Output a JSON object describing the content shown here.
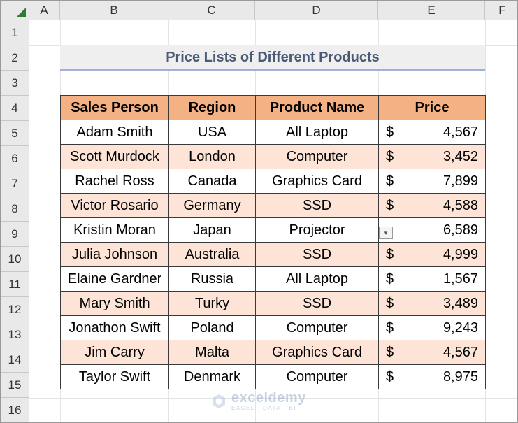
{
  "columns": [
    "A",
    "B",
    "C",
    "D",
    "E",
    "F"
  ],
  "rows": [
    "1",
    "2",
    "3",
    "4",
    "5",
    "6",
    "7",
    "8",
    "9",
    "10",
    "11",
    "12",
    "13",
    "14",
    "15",
    "16"
  ],
  "title": "Price Lists of Different Products",
  "table": {
    "headers": [
      "Sales Person",
      "Region",
      "Product Name",
      "Price"
    ],
    "currency_symbol": "$",
    "rows": [
      {
        "person": "Adam Smith",
        "region": "USA",
        "product": "All Laptop",
        "price": "4,567"
      },
      {
        "person": "Scott Murdock",
        "region": "London",
        "product": "Computer",
        "price": "3,452"
      },
      {
        "person": "Rachel Ross",
        "region": "Canada",
        "product": "Graphics Card",
        "price": "7,899"
      },
      {
        "person": "Victor Rosario",
        "region": "Germany",
        "product": "SSD",
        "price": "4,588"
      },
      {
        "person": "Kristin Moran",
        "region": "Japan",
        "product": "Projector",
        "price": "6,589"
      },
      {
        "person": "Julia Johnson",
        "region": "Australia",
        "product": "SSD",
        "price": "4,999"
      },
      {
        "person": "Elaine Gardner",
        "region": "Russia",
        "product": "All Laptop",
        "price": "1,567"
      },
      {
        "person": "Mary Smith",
        "region": "Turky",
        "product": "SSD",
        "price": "3,489"
      },
      {
        "person": "Jonathon Swift",
        "region": "Poland",
        "product": "Computer",
        "price": "9,243"
      },
      {
        "person": "Jim Carry",
        "region": "Malta",
        "product": "Graphics Card",
        "price": "4,567"
      },
      {
        "person": "Taylor Swift",
        "region": "Denmark",
        "product": "Computer",
        "price": "8,975"
      }
    ]
  },
  "watermark": {
    "name": "exceldemy",
    "tagline": "EXCEL · DATA · BI"
  },
  "colors": {
    "header_fill": "#f4b183",
    "alt_row_fill": "#fde4d6",
    "title_text": "#4a5a76"
  },
  "icons": {
    "corner": "select-all-triangle",
    "dropdown": "paste-options-icon"
  }
}
